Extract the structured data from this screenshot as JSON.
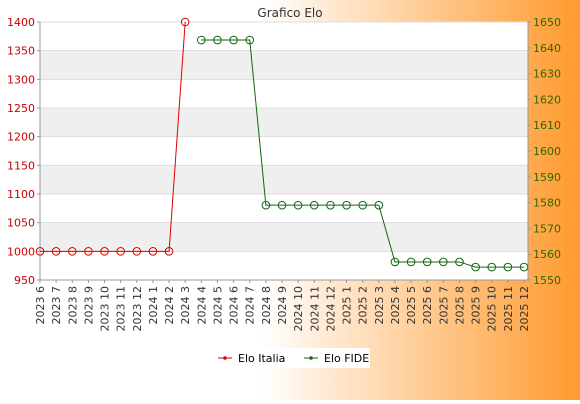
{
  "chart_data": {
    "type": "line",
    "title": "Grafico Elo",
    "categories": [
      "2023 6",
      "2023 7",
      "2023 8",
      "2023 9",
      "2023 10",
      "2023 11",
      "2023 12",
      "2024 1",
      "2024 2",
      "2024 3",
      "2024 4",
      "2024 5",
      "2024 6",
      "2024 7",
      "2024 8",
      "2024 9",
      "2024 10",
      "2024 11",
      "2024 12",
      "2025 1",
      "2025 2",
      "2025 3",
      "2025 4",
      "2025 5",
      "2025 6",
      "2025 7",
      "2025 8",
      "2025 9",
      "2025 10",
      "2025 11",
      "2025 12"
    ],
    "y_left": {
      "min": 950,
      "max": 1400,
      "ticks": [
        950,
        1000,
        1050,
        1100,
        1150,
        1200,
        1250,
        1300,
        1350,
        1400
      ]
    },
    "y_right": {
      "min": 1550,
      "max": 1650,
      "ticks": [
        1550,
        1560,
        1570,
        1580,
        1590,
        1600,
        1610,
        1620,
        1630,
        1640,
        1650
      ]
    },
    "series": [
      {
        "name": "Elo Italia",
        "axis": "left",
        "color": "#dd0000",
        "values": [
          1000,
          1000,
          1000,
          1000,
          1000,
          1000,
          1000,
          1000,
          1000,
          1400,
          null,
          null,
          null,
          null,
          null,
          null,
          null,
          null,
          null,
          null,
          null,
          null,
          null,
          null,
          null,
          null,
          null,
          null,
          null,
          null,
          null
        ]
      },
      {
        "name": "Elo FIDE",
        "axis": "right",
        "color": "#116611",
        "values": [
          null,
          null,
          null,
          null,
          null,
          null,
          null,
          null,
          null,
          null,
          1643,
          1643,
          1643,
          1643,
          1579,
          1579,
          1579,
          1579,
          1579,
          1579,
          1579,
          1579,
          1557,
          1557,
          1557,
          1557,
          1557,
          1555,
          1555,
          1555,
          1555
        ]
      }
    ],
    "grid": true,
    "legend": "bottom-center"
  },
  "colors": {
    "bg_left": "#ffffff",
    "bg_right": "#ff9a2e",
    "band": "#efefef",
    "left_axis_text": "#cc0000",
    "right_axis_text": "#336600"
  }
}
